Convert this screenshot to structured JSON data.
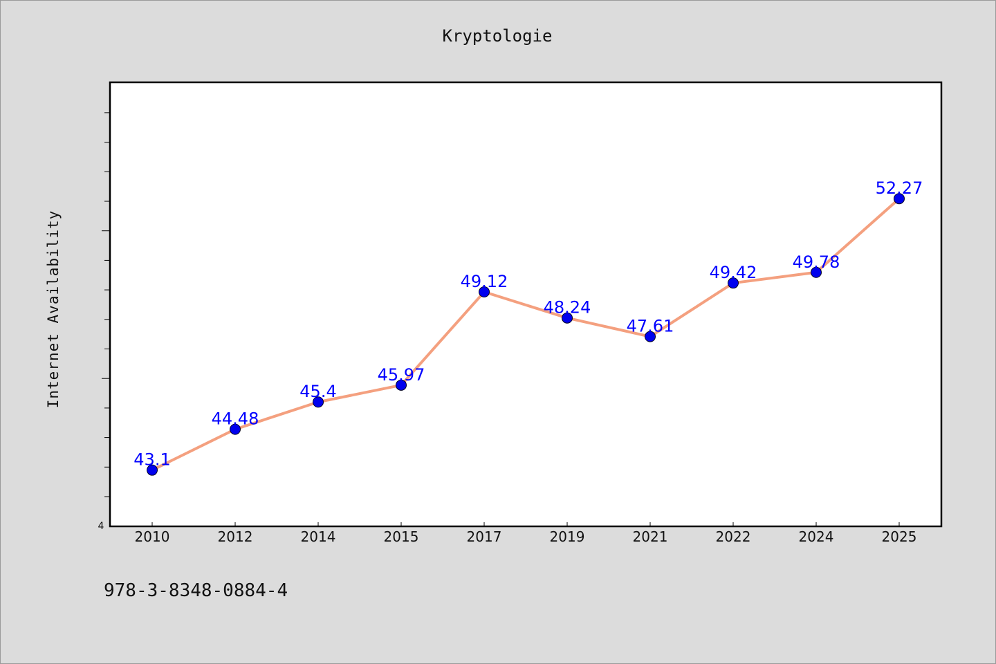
{
  "chart_data": {
    "type": "line",
    "title": "Kryptologie",
    "xlabel": "",
    "ylabel": "Internet Availability",
    "categories": [
      "2010",
      "2012",
      "2014",
      "2015",
      "2017",
      "2019",
      "2021",
      "2022",
      "2024",
      "2025"
    ],
    "series": [
      {
        "values": [
          43.1,
          44.48,
          45.4,
          45.97,
          49.12,
          48.24,
          47.61,
          49.42,
          49.78,
          52.27
        ],
        "data_labels": [
          "43.1",
          "44.48",
          "45.4",
          "45.97",
          "49.12",
          "48.24",
          "47.61",
          "49.42",
          "49.78",
          "52.27"
        ]
      }
    ],
    "ylim": [
      41.2,
      56.2
    ],
    "ytick_label": "4",
    "grid": false,
    "legend": "none",
    "colors": {
      "line": "#f4a07f",
      "marker": "#0000ee",
      "label": "#0000ff",
      "plot_background": "#ffffff",
      "page_background": "#dcdcdc"
    }
  },
  "footer": {
    "text": "978-3-8348-0884-4"
  }
}
